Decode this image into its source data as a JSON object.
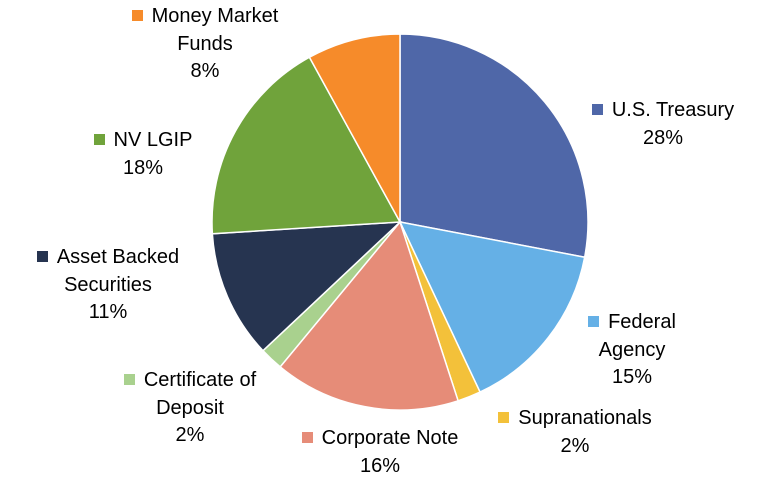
{
  "chart_data": {
    "type": "pie",
    "categories": [
      "U.S. Treasury",
      "Federal Agency",
      "Supranationals",
      "Corporate Note",
      "Certificate of Deposit",
      "Asset Backed Securities",
      "NV LGIP",
      "Money Market Funds"
    ],
    "values": [
      28,
      15,
      2,
      16,
      2,
      11,
      18,
      8
    ],
    "value_labels": [
      "28%",
      "15%",
      "2%",
      "16%",
      "2%",
      "11%",
      "18%",
      "8%"
    ],
    "colors": [
      "#4f67a8",
      "#65b0e6",
      "#f3c13a",
      "#e68c78",
      "#a9d18e",
      "#263450",
      "#70a33b",
      "#f68b2a"
    ]
  }
}
